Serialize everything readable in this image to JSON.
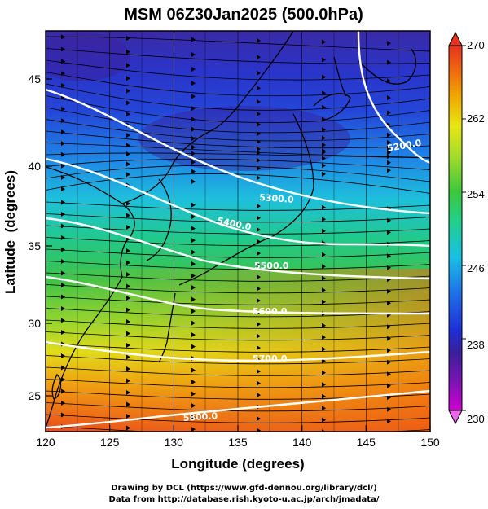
{
  "title": "MSM 06Z30Jan2025 (500.0hPa)",
  "x_axis": {
    "label": "Longitude (degrees)",
    "ticks": [
      "120",
      "125",
      "130",
      "135",
      "140",
      "145",
      "150"
    ]
  },
  "y_axis": {
    "label": "Latitude  (degrees)",
    "ticks": [
      "25",
      "30",
      "35",
      "40",
      "45"
    ]
  },
  "colorbar": {
    "ticks": [
      "230",
      "238",
      "246",
      "254",
      "262",
      "270"
    ],
    "colors": [
      "#d200d2",
      "#3a1f9c",
      "#1f2fd8",
      "#1f6fe8",
      "#19c0e6",
      "#22d08a",
      "#3cc83c",
      "#a6dc2a",
      "#e8e614",
      "#f0a800",
      "#f06a10",
      "#e8321e"
    ]
  },
  "contours": [
    {
      "label": "5200.0"
    },
    {
      "label": "5300.0"
    },
    {
      "label": "5400.0"
    },
    {
      "label": "5500.0"
    },
    {
      "label": "5600.0"
    },
    {
      "label": "5700.0"
    },
    {
      "label": "5800.0"
    }
  ],
  "footer": {
    "line1": "Drawing by DCL (https://www.gfd-dennou.org/library/dcl/)",
    "line2": "Data from http://database.rish.kyoto-u.ac.jp/arch/jmadata/"
  }
}
